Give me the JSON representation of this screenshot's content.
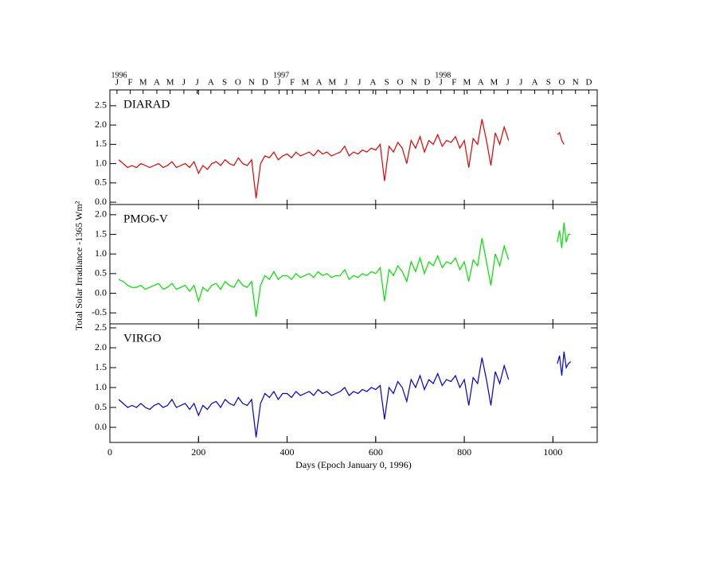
{
  "chart_data": {
    "type": "line",
    "ylabel": "Total Solar Irradiance -1365 Wm²",
    "xlabel": "Days  (Epoch January 0, 1996)",
    "xlim": [
      0,
      1100
    ],
    "xticks": [
      0,
      200,
      400,
      600,
      800,
      1000
    ],
    "x2ticks": [
      {
        "value": 16,
        "label": "J"
      },
      {
        "value": 46,
        "label": "F"
      },
      {
        "value": 75,
        "label": "M"
      },
      {
        "value": 106,
        "label": "A"
      },
      {
        "value": 136,
        "label": "M"
      },
      {
        "value": 167,
        "label": "J"
      },
      {
        "value": 197,
        "label": "J"
      },
      {
        "value": 228,
        "label": "A"
      },
      {
        "value": 259,
        "label": "S"
      },
      {
        "value": 289,
        "label": "O"
      },
      {
        "value": 320,
        "label": "N"
      },
      {
        "value": 350,
        "label": "D"
      },
      {
        "value": 382,
        "label": "J"
      },
      {
        "value": 412,
        "label": "F"
      },
      {
        "value": 441,
        "label": "M"
      },
      {
        "value": 472,
        "label": "A"
      },
      {
        "value": 502,
        "label": "M"
      },
      {
        "value": 533,
        "label": "J"
      },
      {
        "value": 563,
        "label": "J"
      },
      {
        "value": 594,
        "label": "A"
      },
      {
        "value": 625,
        "label": "S"
      },
      {
        "value": 655,
        "label": "O"
      },
      {
        "value": 686,
        "label": "N"
      },
      {
        "value": 716,
        "label": "D"
      },
      {
        "value": 747,
        "label": "J"
      },
      {
        "value": 777,
        "label": "F"
      },
      {
        "value": 806,
        "label": "M"
      },
      {
        "value": 837,
        "label": "A"
      },
      {
        "value": 867,
        "label": "M"
      },
      {
        "value": 898,
        "label": "J"
      },
      {
        "value": 928,
        "label": "J"
      },
      {
        "value": 959,
        "label": "A"
      },
      {
        "value": 990,
        "label": "S"
      },
      {
        "value": 1020,
        "label": "O"
      },
      {
        "value": 1051,
        "label": "N"
      },
      {
        "value": 1081,
        "label": "D"
      }
    ],
    "x2_year_labels": [
      {
        "value": 1,
        "label": "1996"
      },
      {
        "value": 367,
        "label": "1997"
      },
      {
        "value": 732,
        "label": "1998"
      }
    ],
    "x": [
      20,
      30,
      40,
      50,
      60,
      70,
      80,
      90,
      100,
      110,
      120,
      130,
      140,
      150,
      160,
      170,
      180,
      190,
      200,
      210,
      220,
      230,
      240,
      250,
      260,
      270,
      280,
      290,
      300,
      310,
      320,
      330,
      340,
      350,
      360,
      370,
      380,
      390,
      400,
      410,
      420,
      430,
      440,
      450,
      460,
      470,
      480,
      490,
      500,
      510,
      520,
      530,
      540,
      550,
      560,
      570,
      580,
      590,
      600,
      610,
      620,
      630,
      640,
      650,
      660,
      670,
      680,
      690,
      700,
      710,
      720,
      730,
      740,
      750,
      760,
      770,
      780,
      790,
      800,
      810,
      820,
      830,
      840,
      850,
      860,
      870,
      880,
      890,
      900,
      950,
      1010,
      1015,
      1020,
      1025,
      1030,
      1035,
      1040
    ],
    "panels": [
      {
        "name": "DIARAD",
        "color": "#e00000",
        "ylim": [
          -0.06,
          2.91
        ],
        "yticks": [
          {
            "value": 0,
            "label": "0.0"
          },
          0.5,
          {
            "value": 1,
            "label": "1.0"
          },
          1.5,
          {
            "value": 2,
            "label": "2.0"
          },
          2.5
        ],
        "values": [
          1.1,
          1.0,
          0.9,
          0.95,
          0.9,
          1.0,
          0.95,
          0.9,
          0.95,
          1.0,
          0.9,
          0.95,
          1.05,
          0.9,
          0.95,
          1.0,
          0.9,
          1.05,
          0.75,
          0.95,
          0.85,
          1.0,
          1.05,
          0.95,
          1.1,
          1.0,
          0.95,
          1.15,
          1.0,
          0.95,
          1.1,
          0.1,
          1.0,
          1.2,
          1.15,
          1.3,
          1.1,
          1.2,
          1.25,
          1.15,
          1.3,
          1.2,
          1.25,
          1.3,
          1.2,
          1.35,
          1.25,
          1.3,
          1.2,
          1.25,
          1.3,
          1.45,
          1.2,
          1.3,
          1.25,
          1.35,
          1.3,
          1.4,
          1.35,
          1.5,
          0.55,
          1.45,
          1.3,
          1.55,
          1.4,
          1.0,
          1.6,
          1.4,
          1.7,
          1.3,
          1.6,
          1.5,
          1.75,
          1.45,
          1.6,
          1.55,
          1.7,
          1.4,
          1.6,
          0.9,
          1.65,
          1.5,
          2.15,
          1.6,
          0.95,
          1.8,
          1.5,
          1.95,
          1.6,
          null,
          1.75,
          1.8,
          1.6,
          1.5,
          null,
          null,
          null
        ]
      },
      {
        "name": "PMO6-V",
        "color": "#00e000",
        "ylim": [
          -0.78,
          2.26
        ],
        "yticks": [
          -0.5,
          {
            "value": 0,
            "label": "0.0"
          },
          0.5,
          {
            "value": 1,
            "label": "1.0"
          },
          1.5,
          {
            "value": 2,
            "label": "2.0"
          }
        ],
        "values": [
          0.35,
          0.3,
          0.2,
          0.15,
          0.15,
          0.2,
          0.1,
          0.15,
          0.2,
          0.25,
          0.1,
          0.15,
          0.25,
          0.1,
          0.15,
          0.2,
          0.05,
          0.2,
          -0.2,
          0.15,
          0.05,
          0.2,
          0.25,
          0.1,
          0.3,
          0.2,
          0.15,
          0.35,
          0.2,
          0.15,
          0.3,
          -0.6,
          0.2,
          0.45,
          0.35,
          0.55,
          0.35,
          0.45,
          0.45,
          0.35,
          0.5,
          0.4,
          0.45,
          0.5,
          0.4,
          0.55,
          0.45,
          0.5,
          0.4,
          0.45,
          0.45,
          0.6,
          0.35,
          0.45,
          0.4,
          0.5,
          0.45,
          0.55,
          0.5,
          0.65,
          -0.2,
          0.6,
          0.45,
          0.7,
          0.55,
          0.3,
          0.8,
          0.55,
          0.9,
          0.5,
          0.8,
          0.7,
          0.95,
          0.65,
          0.8,
          0.75,
          0.9,
          0.6,
          0.8,
          0.3,
          0.85,
          0.7,
          1.4,
          0.8,
          0.2,
          1.0,
          0.7,
          1.2,
          0.85,
          null,
          1.3,
          1.6,
          1.15,
          1.8,
          1.3,
          1.5,
          1.5
        ]
      },
      {
        "name": "VIRGO",
        "color": "#0000d0",
        "ylim": [
          -0.38,
          2.6
        ],
        "yticks": [
          {
            "value": 0,
            "label": "0.0"
          },
          0.5,
          {
            "value": 1,
            "label": "1.0"
          },
          1.5,
          {
            "value": 2,
            "label": "2.0"
          },
          2.5
        ],
        "values": [
          0.7,
          0.6,
          0.5,
          0.55,
          0.5,
          0.6,
          0.5,
          0.45,
          0.55,
          0.6,
          0.5,
          0.55,
          0.7,
          0.5,
          0.55,
          0.6,
          0.45,
          0.6,
          0.3,
          0.55,
          0.45,
          0.6,
          0.65,
          0.5,
          0.7,
          0.6,
          0.55,
          0.75,
          0.6,
          0.55,
          0.7,
          -0.25,
          0.6,
          0.85,
          0.75,
          0.9,
          0.7,
          0.85,
          0.85,
          0.75,
          0.9,
          0.8,
          0.85,
          0.9,
          0.8,
          0.95,
          0.85,
          0.9,
          0.8,
          0.85,
          0.9,
          1.0,
          0.8,
          0.9,
          0.85,
          0.95,
          0.9,
          1.0,
          0.95,
          1.05,
          0.2,
          1.0,
          0.85,
          1.15,
          1.0,
          0.65,
          1.2,
          1.0,
          1.3,
          0.95,
          1.2,
          1.1,
          1.35,
          1.05,
          1.2,
          1.15,
          1.3,
          1.0,
          1.2,
          0.55,
          1.25,
          1.1,
          1.75,
          1.2,
          0.55,
          1.4,
          1.1,
          1.55,
          1.2,
          null,
          1.6,
          1.8,
          1.3,
          1.9,
          1.5,
          1.6,
          1.65
        ]
      }
    ]
  }
}
